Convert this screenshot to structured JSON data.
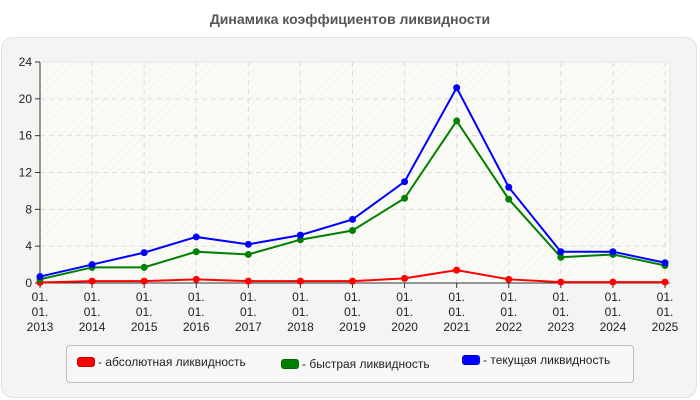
{
  "chart_data": {
    "type": "line",
    "title": "Динамика коэффициентов ликвидности",
    "xlabel": "",
    "ylabel": "",
    "x": [
      "01.01.2013",
      "01.01.2014",
      "01.01.2015",
      "01.01.2016",
      "01.01.2017",
      "01.01.2018",
      "01.01.2019",
      "01.01.2020",
      "01.01.2021",
      "01.01.2022",
      "01.01.2023",
      "01.01.2024",
      "01.01.2025"
    ],
    "x_tick_lines": [
      [
        "01.",
        "01.",
        "2013"
      ],
      [
        "01.",
        "01.",
        "2014"
      ],
      [
        "01.",
        "01.",
        "2015"
      ],
      [
        "01.",
        "01.",
        "2016"
      ],
      [
        "01.",
        "01.",
        "2017"
      ],
      [
        "01.",
        "01.",
        "2018"
      ],
      [
        "01.",
        "01.",
        "2019"
      ],
      [
        "01.",
        "01.",
        "2020"
      ],
      [
        "01.",
        "01.",
        "2021"
      ],
      [
        "01.",
        "01.",
        "2022"
      ],
      [
        "01.",
        "01.",
        "2023"
      ],
      [
        "01.",
        "01.",
        "2024"
      ],
      [
        "01.",
        "01.",
        "2025"
      ]
    ],
    "ylim": [
      0,
      24
    ],
    "yticks": [
      0,
      4,
      8,
      12,
      16,
      20,
      24
    ],
    "grid": true,
    "legend_position": "bottom",
    "series": [
      {
        "name": "- абсолютная ликвидность",
        "color": "#ff0000",
        "values": [
          0.05,
          0.2,
          0.2,
          0.4,
          0.2,
          0.2,
          0.2,
          0.5,
          1.4,
          0.4,
          0.1,
          0.1,
          0.1
        ]
      },
      {
        "name": "- быстрая ликвидность",
        "color": "#008000",
        "values": [
          0.4,
          1.7,
          1.7,
          3.4,
          3.1,
          4.7,
          5.7,
          9.2,
          17.6,
          9.1,
          2.8,
          3.1,
          1.9
        ]
      },
      {
        "name": "- текущая ликвидность",
        "color": "#0000ff",
        "values": [
          0.7,
          2.0,
          3.3,
          5.0,
          4.2,
          5.2,
          6.9,
          11.0,
          21.2,
          10.4,
          3.4,
          3.4,
          2.2
        ]
      }
    ]
  },
  "legend": {
    "items": [
      {
        "label": "- абсолютная ликвидность",
        "color": "#ff0000"
      },
      {
        "label": "- быстрая ликвидность",
        "color": "#008000"
      },
      {
        "label": "- текущая ликвидность",
        "color": "#0000ff"
      }
    ]
  }
}
